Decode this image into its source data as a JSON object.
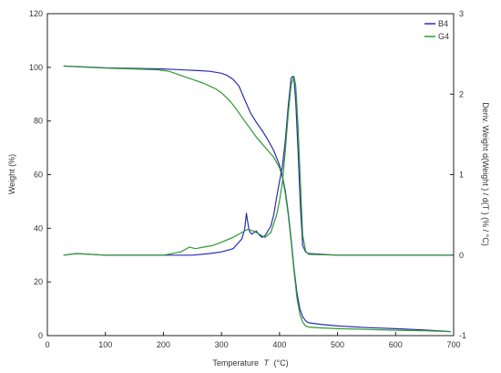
{
  "chart_data": {
    "type": "line",
    "xlabel": "Temperature",
    "xlabel_symbol": "T",
    "xlabel_unit": "(°C)",
    "ylabel_left": "Weight  (%)",
    "ylabel_right": "Deriv. Weight d(Weight ) / d(T ) (% / °C)",
    "xlim": [
      0,
      700
    ],
    "ylim_left": [
      0,
      120
    ],
    "ylim_right": [
      -1,
      3
    ],
    "x_ticks": [
      "0",
      "100",
      "200",
      "300",
      "400",
      "500",
      "600",
      "700"
    ],
    "y_ticks_left": [
      "0",
      "20",
      "40",
      "60",
      "80",
      "100",
      "120"
    ],
    "y_ticks_right": [
      "-1",
      "0",
      "1",
      "2",
      "3"
    ],
    "legend_position": "top-right",
    "grid": false,
    "series": [
      {
        "name": "B4",
        "color": "#2b2bb5",
        "axis": "left",
        "kind": "weight",
        "x": [
          28,
          50,
          100,
          150,
          200,
          220,
          240,
          260,
          280,
          300,
          310,
          320,
          330,
          340,
          350,
          360,
          370,
          380,
          390,
          400,
          405,
          410,
          415,
          420,
          425,
          430,
          435,
          440,
          445,
          450,
          470,
          500,
          550,
          600,
          650,
          695
        ],
        "y": [
          100.5,
          100.3,
          99.8,
          99.6,
          99.4,
          99.2,
          99.0,
          98.8,
          98.5,
          97.8,
          97.0,
          95.5,
          93.0,
          88.0,
          83.0,
          79.5,
          76.5,
          73.0,
          69.0,
          63.5,
          59.5,
          54.0,
          46.0,
          36.0,
          25.0,
          16.0,
          10.0,
          7.0,
          5.5,
          4.8,
          4.2,
          3.6,
          3.0,
          2.6,
          2.1,
          1.5
        ]
      },
      {
        "name": "G4",
        "color": "#2e9a2e",
        "axis": "left",
        "kind": "weight",
        "x": [
          28,
          50,
          100,
          150,
          190,
          210,
          230,
          250,
          270,
          290,
          300,
          310,
          320,
          330,
          340,
          350,
          360,
          370,
          380,
          390,
          400,
          405,
          410,
          415,
          420,
          425,
          430,
          435,
          440,
          445,
          450,
          470,
          500,
          550,
          600,
          650,
          695
        ],
        "y": [
          100.5,
          100.2,
          99.7,
          99.4,
          99.1,
          98.5,
          97.0,
          95.5,
          94.0,
          92.0,
          90.5,
          88.5,
          86.0,
          83.0,
          80.0,
          77.0,
          74.0,
          71.5,
          69.0,
          66.5,
          62.5,
          59.0,
          53.0,
          45.0,
          35.0,
          24.0,
          14.0,
          8.0,
          5.0,
          3.6,
          3.2,
          2.9,
          2.6,
          2.3,
          2.0,
          1.8,
          1.5
        ]
      },
      {
        "name": "B4",
        "color": "#2b2bb5",
        "axis": "right",
        "kind": "derivative",
        "x": [
          28,
          50,
          100,
          150,
          200,
          250,
          280,
          300,
          320,
          335,
          340,
          343,
          345,
          348,
          352,
          360,
          365,
          370,
          375,
          380,
          385,
          390,
          395,
          400,
          405,
          410,
          415,
          420,
          423,
          425,
          428,
          432,
          436,
          440,
          445,
          450,
          500,
          600,
          695
        ],
        "y": [
          0.0,
          0.02,
          0.0,
          0.0,
          0.0,
          0.0,
          0.02,
          0.04,
          0.08,
          0.2,
          0.32,
          0.52,
          0.42,
          0.3,
          0.26,
          0.3,
          0.25,
          0.22,
          0.24,
          0.3,
          0.36,
          0.5,
          0.72,
          0.92,
          1.1,
          1.42,
          1.85,
          2.2,
          2.22,
          2.18,
          1.9,
          1.3,
          0.6,
          0.12,
          0.04,
          0.02,
          0.0,
          0.0,
          0.0
        ]
      },
      {
        "name": "G4",
        "color": "#2e9a2e",
        "axis": "right",
        "kind": "derivative",
        "x": [
          28,
          50,
          100,
          150,
          200,
          230,
          245,
          255,
          270,
          285,
          300,
          320,
          335,
          345,
          355,
          365,
          375,
          385,
          395,
          400,
          405,
          410,
          415,
          420,
          425,
          428,
          432,
          436,
          440,
          445,
          450,
          500,
          600,
          695
        ],
        "y": [
          0.0,
          0.02,
          0.0,
          0.0,
          0.0,
          0.04,
          0.1,
          0.08,
          0.1,
          0.12,
          0.16,
          0.22,
          0.28,
          0.32,
          0.3,
          0.26,
          0.22,
          0.28,
          0.5,
          0.68,
          0.9,
          1.3,
          1.75,
          2.12,
          2.22,
          2.1,
          1.6,
          0.9,
          0.25,
          0.05,
          0.01,
          0.0,
          0.0,
          0.0
        ]
      }
    ]
  }
}
